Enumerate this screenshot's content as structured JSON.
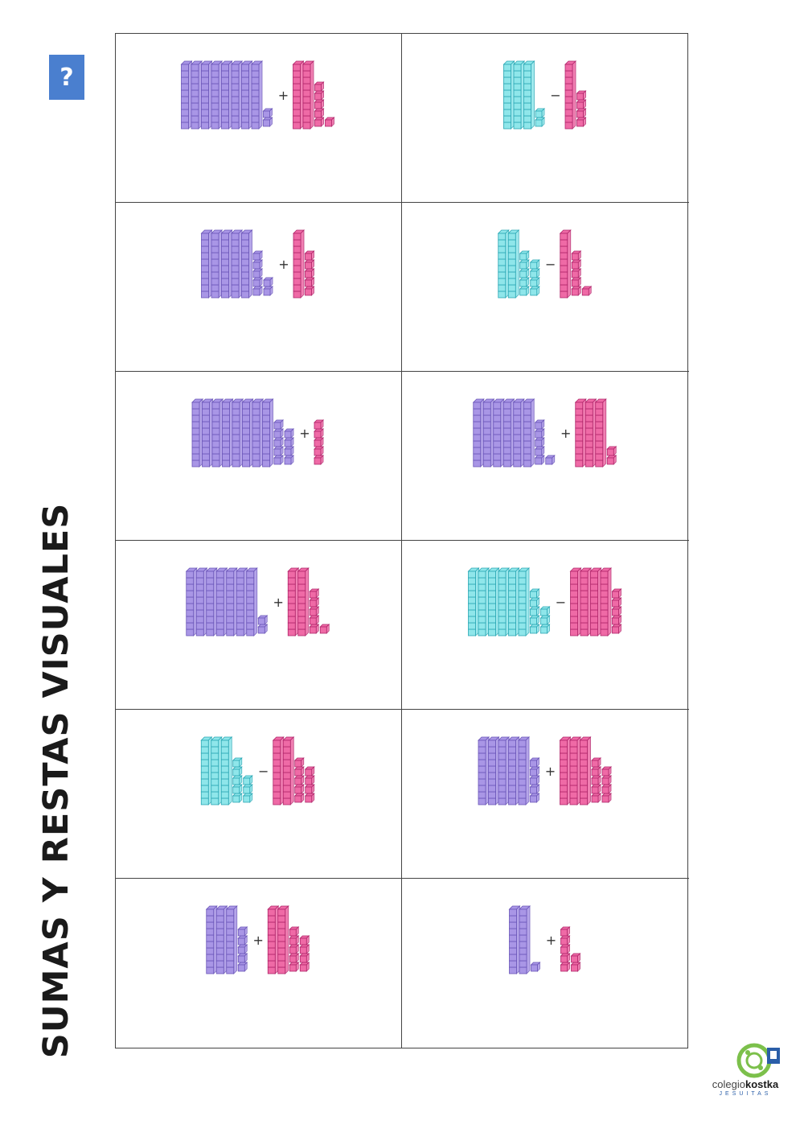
{
  "help_button": {
    "label": "?"
  },
  "title": "SUMAS Y RESTAS VISUALES",
  "colors": {
    "tens_purple": "#a996e6",
    "tens_cyan": "#8fe6ea",
    "units_pink": "#ef6aa6",
    "grid": "#444444",
    "help_button": "#4a7fcf"
  },
  "exercises": [
    {
      "op": "+",
      "a_tens": 8,
      "a_units": 2,
      "a_color": "purple",
      "b_tens": 2,
      "b_units": 6,
      "b_color": "pink"
    },
    {
      "op": "−",
      "a_tens": 3,
      "a_units": 2,
      "a_color": "cyan",
      "b_tens": 1,
      "b_units": 4,
      "b_color": "pink"
    },
    {
      "op": "+",
      "a_tens": 5,
      "a_units": 7,
      "a_color": "purple",
      "b_tens": 1,
      "b_units": 5,
      "b_color": "pink"
    },
    {
      "op": "−",
      "a_tens": 2,
      "a_units": 9,
      "a_color": "cyan",
      "b_tens": 1,
      "b_units": 6,
      "b_color": "pink"
    },
    {
      "op": "+",
      "a_tens": 8,
      "a_units": 9,
      "a_color": "purple",
      "b_tens": 0,
      "b_units": 5,
      "b_color": "pink"
    },
    {
      "op": "+",
      "a_tens": 6,
      "a_units": 6,
      "a_color": "purple",
      "b_tens": 3,
      "b_units": 2,
      "b_color": "pink"
    },
    {
      "op": "+",
      "a_tens": 7,
      "a_units": 2,
      "a_color": "purple",
      "b_tens": 2,
      "b_units": 6,
      "b_color": "pink"
    },
    {
      "op": "−",
      "a_tens": 6,
      "a_units": 8,
      "a_color": "cyan",
      "b_tens": 4,
      "b_units": 5,
      "b_color": "pink"
    },
    {
      "op": "−",
      "a_tens": 3,
      "a_units": 8,
      "a_color": "cyan",
      "b_tens": 2,
      "b_units": 9,
      "b_color": "pink"
    },
    {
      "op": "+",
      "a_tens": 5,
      "a_units": 5,
      "a_color": "purple",
      "b_tens": 3,
      "b_units": 9,
      "b_color": "pink"
    },
    {
      "op": "+",
      "a_tens": 3,
      "a_units": 5,
      "a_color": "purple",
      "b_tens": 2,
      "b_units": 9,
      "b_color": "pink"
    },
    {
      "op": "+",
      "a_tens": 2,
      "a_units": 1,
      "a_color": "purple",
      "b_tens": 0,
      "b_units": 7,
      "b_color": "pink"
    }
  ],
  "logo": {
    "word_light": "colegio",
    "word_bold": "kostka",
    "sub": "JESUITAS"
  }
}
